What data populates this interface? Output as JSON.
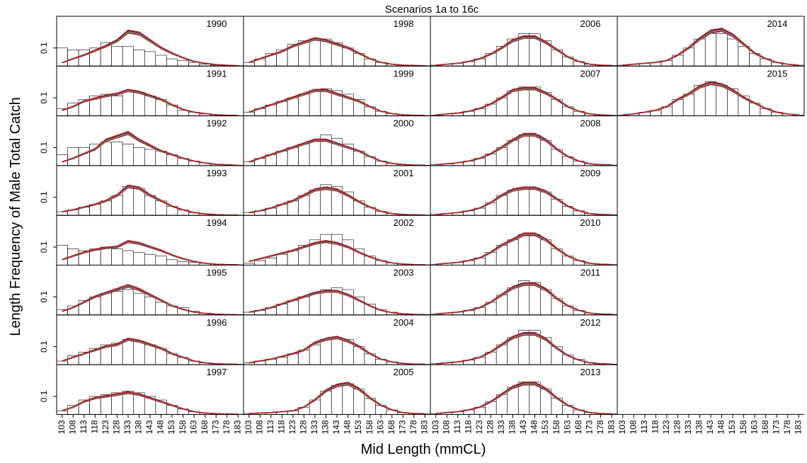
{
  "chart_data": {
    "type": "bar",
    "title": "Scenarios 1a to 16c",
    "xlabel": "Mid Length (mmCL)",
    "ylabel": "Length Frequency of Male Total Catch",
    "x_ticks": [
      "103",
      "108",
      "113",
      "118",
      "123",
      "128",
      "133",
      "138",
      "143",
      "148",
      "153",
      "158",
      "163",
      "168",
      "173",
      "178",
      "183"
    ],
    "y_tick_label": "0.1",
    "y_tick_value": 0.1,
    "ylim": [
      0,
      0.26
    ],
    "grid": false,
    "legend": "none",
    "layout": {
      "columns": 4,
      "rows": 8
    },
    "line_colors": [
      "#8a8a8a",
      "#ff0000",
      "#0000cc",
      "#e0e000",
      "#00bb00",
      "#ff00ff",
      "#000000",
      "#b22222"
    ],
    "panels": [
      {
        "year": "1990",
        "col": 0,
        "row": 0,
        "obs": [
          0.1,
          0.09,
          0.09,
          0.1,
          0.13,
          0.11,
          0.11,
          0.09,
          0.08,
          0.06,
          0.04,
          0.03,
          0.02,
          0.01,
          0.005,
          0.003,
          0.002
        ],
        "pred": [
          0.018,
          0.04,
          0.06,
          0.085,
          0.11,
          0.14,
          0.19,
          0.18,
          0.14,
          0.1,
          0.07,
          0.045,
          0.025,
          0.015,
          0.008,
          0.004,
          0.002
        ]
      },
      {
        "year": "1991",
        "col": 0,
        "row": 1,
        "obs": [
          0.04,
          0.07,
          0.09,
          0.11,
          0.12,
          0.11,
          0.14,
          0.13,
          0.11,
          0.09,
          0.06,
          0.03,
          0.02,
          0.01,
          0.005,
          0.002,
          0.001
        ],
        "pred": [
          0.03,
          0.05,
          0.08,
          0.095,
          0.11,
          0.12,
          0.14,
          0.13,
          0.11,
          0.09,
          0.06,
          0.035,
          0.02,
          0.012,
          0.006,
          0.003,
          0.002
        ]
      },
      {
        "year": "1992",
        "col": 0,
        "row": 2,
        "obs": [
          0.06,
          0.1,
          0.1,
          0.12,
          0.13,
          0.13,
          0.12,
          0.1,
          0.09,
          0.08,
          0.06,
          0.04,
          0.025,
          0.015,
          0.008,
          0.004,
          0.002
        ],
        "pred": [
          0.02,
          0.04,
          0.065,
          0.09,
          0.14,
          0.16,
          0.18,
          0.14,
          0.11,
          0.08,
          0.06,
          0.04,
          0.025,
          0.014,
          0.007,
          0.004,
          0.002
        ]
      },
      {
        "year": "1993",
        "col": 0,
        "row": 3,
        "obs": [
          0.02,
          0.03,
          0.045,
          0.06,
          0.08,
          0.11,
          0.16,
          0.15,
          0.11,
          0.08,
          0.05,
          0.03,
          0.015,
          0.008,
          0.004,
          0.002,
          0.001
        ],
        "pred": [
          0.02,
          0.03,
          0.045,
          0.06,
          0.08,
          0.11,
          0.16,
          0.15,
          0.11,
          0.08,
          0.05,
          0.03,
          0.015,
          0.008,
          0.004,
          0.002,
          0.001
        ]
      },
      {
        "year": "1994",
        "col": 0,
        "row": 4,
        "obs": [
          0.11,
          0.09,
          0.08,
          0.09,
          0.1,
          0.09,
          0.08,
          0.07,
          0.06,
          0.05,
          0.03,
          0.02,
          0.015,
          0.01,
          0.005,
          0.003,
          0.002
        ],
        "pred": [
          0.03,
          0.05,
          0.07,
          0.085,
          0.095,
          0.1,
          0.13,
          0.12,
          0.1,
          0.08,
          0.055,
          0.035,
          0.02,
          0.01,
          0.005,
          0.003,
          0.002
        ]
      },
      {
        "year": "1995",
        "col": 0,
        "row": 5,
        "obs": [
          0.03,
          0.05,
          0.08,
          0.1,
          0.12,
          0.13,
          0.14,
          0.12,
          0.1,
          0.07,
          0.05,
          0.04,
          0.02,
          0.01,
          0.005,
          0.003,
          0.002
        ],
        "pred": [
          0.02,
          0.04,
          0.07,
          0.1,
          0.12,
          0.14,
          0.16,
          0.14,
          0.11,
          0.08,
          0.05,
          0.03,
          0.015,
          0.008,
          0.004,
          0.002,
          0.001
        ]
      },
      {
        "year": "1996",
        "col": 0,
        "row": 6,
        "obs": [
          0.02,
          0.05,
          0.07,
          0.09,
          0.11,
          0.12,
          0.14,
          0.13,
          0.11,
          0.09,
          0.06,
          0.04,
          0.02,
          0.01,
          0.005,
          0.003,
          0.002
        ],
        "pred": [
          0.02,
          0.04,
          0.06,
          0.08,
          0.1,
          0.11,
          0.14,
          0.13,
          0.11,
          0.09,
          0.06,
          0.04,
          0.02,
          0.01,
          0.005,
          0.003,
          0.002
        ]
      },
      {
        "year": "1997",
        "col": 0,
        "row": 7,
        "obs": [
          0.02,
          0.05,
          0.08,
          0.1,
          0.11,
          0.12,
          0.13,
          0.12,
          0.1,
          0.08,
          0.05,
          0.03,
          0.015,
          0.008,
          0.004,
          0.002,
          0.001
        ],
        "pred": [
          0.02,
          0.04,
          0.07,
          0.09,
          0.1,
          0.11,
          0.12,
          0.11,
          0.09,
          0.07,
          0.05,
          0.03,
          0.015,
          0.008,
          0.004,
          0.002,
          0.001
        ]
      },
      {
        "year": "1998",
        "col": 1,
        "row": 0,
        "obs": [
          0.02,
          0.04,
          0.07,
          0.09,
          0.12,
          0.14,
          0.15,
          0.15,
          0.13,
          0.1,
          0.07,
          0.04,
          0.02,
          0.01,
          0.005,
          0.003,
          0.002
        ],
        "pred": [
          0.02,
          0.04,
          0.06,
          0.08,
          0.11,
          0.13,
          0.15,
          0.14,
          0.12,
          0.1,
          0.07,
          0.04,
          0.02,
          0.01,
          0.005,
          0.003,
          0.002
        ]
      },
      {
        "year": "1999",
        "col": 1,
        "row": 1,
        "obs": [
          0.02,
          0.04,
          0.06,
          0.08,
          0.1,
          0.12,
          0.14,
          0.15,
          0.14,
          0.12,
          0.09,
          0.05,
          0.025,
          0.012,
          0.006,
          0.003,
          0.002
        ],
        "pred": [
          0.02,
          0.04,
          0.06,
          0.08,
          0.1,
          0.12,
          0.14,
          0.14,
          0.12,
          0.1,
          0.08,
          0.05,
          0.025,
          0.012,
          0.006,
          0.003,
          0.002
        ]
      },
      {
        "year": "2000",
        "col": 1,
        "row": 2,
        "obs": [
          0.02,
          0.04,
          0.06,
          0.08,
          0.1,
          0.12,
          0.14,
          0.17,
          0.15,
          0.12,
          0.08,
          0.05,
          0.025,
          0.012,
          0.006,
          0.003,
          0.002
        ],
        "pred": [
          0.02,
          0.04,
          0.06,
          0.08,
          0.1,
          0.12,
          0.14,
          0.14,
          0.12,
          0.1,
          0.08,
          0.05,
          0.025,
          0.012,
          0.006,
          0.003,
          0.002
        ]
      },
      {
        "year": "2001",
        "col": 1,
        "row": 3,
        "obs": [
          0.015,
          0.025,
          0.04,
          0.06,
          0.08,
          0.11,
          0.14,
          0.17,
          0.16,
          0.13,
          0.08,
          0.045,
          0.022,
          0.01,
          0.005,
          0.003,
          0.002
        ],
        "pred": [
          0.015,
          0.025,
          0.04,
          0.06,
          0.08,
          0.11,
          0.14,
          0.15,
          0.14,
          0.11,
          0.075,
          0.045,
          0.022,
          0.01,
          0.005,
          0.003,
          0.002
        ]
      },
      {
        "year": "2002",
        "col": 1,
        "row": 4,
        "obs": [
          0.01,
          0.025,
          0.04,
          0.06,
          0.08,
          0.11,
          0.14,
          0.17,
          0.17,
          0.14,
          0.09,
          0.05,
          0.025,
          0.012,
          0.006,
          0.003,
          0.002
        ],
        "pred": [
          0.02,
          0.035,
          0.05,
          0.065,
          0.08,
          0.1,
          0.12,
          0.13,
          0.12,
          0.1,
          0.07,
          0.045,
          0.025,
          0.012,
          0.006,
          0.003,
          0.002
        ]
      },
      {
        "year": "2003",
        "col": 1,
        "row": 5,
        "obs": [
          0.015,
          0.025,
          0.04,
          0.06,
          0.08,
          0.1,
          0.12,
          0.14,
          0.15,
          0.14,
          0.1,
          0.06,
          0.03,
          0.015,
          0.007,
          0.003,
          0.002
        ],
        "pred": [
          0.015,
          0.025,
          0.04,
          0.06,
          0.08,
          0.1,
          0.12,
          0.13,
          0.13,
          0.11,
          0.08,
          0.05,
          0.025,
          0.012,
          0.006,
          0.003,
          0.002
        ]
      },
      {
        "year": "2004",
        "col": 1,
        "row": 6,
        "obs": [
          0.01,
          0.02,
          0.03,
          0.04,
          0.06,
          0.08,
          0.11,
          0.14,
          0.15,
          0.14,
          0.1,
          0.06,
          0.03,
          0.015,
          0.007,
          0.003,
          0.002
        ],
        "pred": [
          0.01,
          0.02,
          0.03,
          0.045,
          0.06,
          0.08,
          0.12,
          0.14,
          0.15,
          0.13,
          0.1,
          0.06,
          0.03,
          0.015,
          0.007,
          0.003,
          0.002
        ]
      },
      {
        "year": "2005",
        "col": 1,
        "row": 7,
        "obs": [
          0.005,
          0.008,
          0.01,
          0.015,
          0.02,
          0.04,
          0.08,
          0.13,
          0.16,
          0.17,
          0.14,
          0.09,
          0.05,
          0.025,
          0.01,
          0.005,
          0.003
        ],
        "pred": [
          0.005,
          0.008,
          0.01,
          0.015,
          0.02,
          0.04,
          0.08,
          0.13,
          0.16,
          0.17,
          0.14,
          0.09,
          0.05,
          0.025,
          0.01,
          0.005,
          0.003
        ]
      },
      {
        "year": "2006",
        "col": 2,
        "row": 0,
        "obs": [
          0.005,
          0.01,
          0.015,
          0.025,
          0.04,
          0.07,
          0.11,
          0.15,
          0.18,
          0.18,
          0.14,
          0.09,
          0.05,
          0.025,
          0.01,
          0.005,
          0.003
        ],
        "pred": [
          0.005,
          0.01,
          0.015,
          0.025,
          0.04,
          0.065,
          0.1,
          0.14,
          0.16,
          0.16,
          0.13,
          0.09,
          0.05,
          0.025,
          0.01,
          0.005,
          0.003
        ]
      },
      {
        "year": "2007",
        "col": 2,
        "row": 1,
        "obs": [
          0.005,
          0.01,
          0.015,
          0.025,
          0.04,
          0.065,
          0.1,
          0.14,
          0.16,
          0.16,
          0.13,
          0.09,
          0.05,
          0.025,
          0.01,
          0.005,
          0.003
        ],
        "pred": [
          0.005,
          0.01,
          0.015,
          0.025,
          0.04,
          0.065,
          0.1,
          0.14,
          0.15,
          0.15,
          0.125,
          0.09,
          0.05,
          0.025,
          0.01,
          0.005,
          0.003
        ]
      },
      {
        "year": "2008",
        "col": 2,
        "row": 2,
        "obs": [
          0.005,
          0.01,
          0.015,
          0.025,
          0.04,
          0.065,
          0.1,
          0.14,
          0.17,
          0.17,
          0.14,
          0.09,
          0.05,
          0.025,
          0.01,
          0.005,
          0.003
        ],
        "pred": [
          0.005,
          0.01,
          0.015,
          0.025,
          0.04,
          0.065,
          0.1,
          0.14,
          0.17,
          0.17,
          0.14,
          0.09,
          0.05,
          0.025,
          0.01,
          0.005,
          0.003
        ]
      },
      {
        "year": "2009",
        "col": 2,
        "row": 3,
        "obs": [
          0.005,
          0.01,
          0.015,
          0.025,
          0.04,
          0.07,
          0.11,
          0.14,
          0.15,
          0.15,
          0.13,
          0.09,
          0.05,
          0.025,
          0.01,
          0.005,
          0.003
        ],
        "pred": [
          0.005,
          0.01,
          0.015,
          0.025,
          0.04,
          0.07,
          0.11,
          0.14,
          0.15,
          0.15,
          0.13,
          0.09,
          0.05,
          0.025,
          0.01,
          0.005,
          0.003
        ]
      },
      {
        "year": "2010",
        "col": 2,
        "row": 4,
        "obs": [
          0.005,
          0.01,
          0.015,
          0.025,
          0.04,
          0.07,
          0.11,
          0.14,
          0.17,
          0.17,
          0.14,
          0.09,
          0.05,
          0.025,
          0.01,
          0.005,
          0.003
        ],
        "pred": [
          0.005,
          0.01,
          0.015,
          0.025,
          0.04,
          0.07,
          0.11,
          0.14,
          0.17,
          0.17,
          0.14,
          0.09,
          0.05,
          0.025,
          0.01,
          0.005,
          0.003
        ]
      },
      {
        "year": "2011",
        "col": 2,
        "row": 5,
        "obs": [
          0.005,
          0.01,
          0.015,
          0.025,
          0.04,
          0.07,
          0.11,
          0.15,
          0.19,
          0.18,
          0.14,
          0.09,
          0.05,
          0.025,
          0.01,
          0.005,
          0.003
        ],
        "pred": [
          0.005,
          0.01,
          0.015,
          0.025,
          0.04,
          0.07,
          0.11,
          0.15,
          0.17,
          0.17,
          0.14,
          0.09,
          0.05,
          0.025,
          0.01,
          0.005,
          0.003
        ]
      },
      {
        "year": "2012",
        "col": 2,
        "row": 6,
        "obs": [
          0.005,
          0.01,
          0.015,
          0.025,
          0.04,
          0.07,
          0.11,
          0.15,
          0.19,
          0.19,
          0.15,
          0.1,
          0.055,
          0.03,
          0.012,
          0.006,
          0.003
        ],
        "pred": [
          0.005,
          0.01,
          0.015,
          0.025,
          0.04,
          0.07,
          0.11,
          0.15,
          0.17,
          0.17,
          0.14,
          0.09,
          0.05,
          0.025,
          0.01,
          0.005,
          0.003
        ]
      },
      {
        "year": "2013",
        "col": 2,
        "row": 7,
        "obs": [
          0.005,
          0.01,
          0.015,
          0.025,
          0.04,
          0.07,
          0.11,
          0.15,
          0.18,
          0.18,
          0.14,
          0.09,
          0.05,
          0.025,
          0.01,
          0.005,
          0.003
        ],
        "pred": [
          0.005,
          0.01,
          0.015,
          0.025,
          0.04,
          0.07,
          0.11,
          0.15,
          0.17,
          0.17,
          0.14,
          0.09,
          0.05,
          0.025,
          0.01,
          0.005,
          0.003
        ]
      },
      {
        "year": "2014",
        "col": 3,
        "row": 0,
        "obs": [
          0.005,
          0.01,
          0.015,
          0.02,
          0.03,
          0.06,
          0.1,
          0.15,
          0.18,
          0.18,
          0.15,
          0.11,
          0.07,
          0.04,
          0.02,
          0.01,
          0.005
        ],
        "pred": [
          0.005,
          0.01,
          0.015,
          0.02,
          0.03,
          0.06,
          0.1,
          0.15,
          0.19,
          0.2,
          0.17,
          0.12,
          0.07,
          0.04,
          0.02,
          0.01,
          0.005
        ]
      },
      {
        "year": "2015",
        "col": 3,
        "row": 1,
        "obs": [
          0.005,
          0.01,
          0.02,
          0.03,
          0.05,
          0.09,
          0.12,
          0.17,
          0.19,
          0.17,
          0.15,
          0.11,
          0.07,
          0.04,
          0.02,
          0.01,
          0.005
        ],
        "pred": [
          0.005,
          0.01,
          0.02,
          0.03,
          0.05,
          0.09,
          0.12,
          0.16,
          0.18,
          0.17,
          0.14,
          0.1,
          0.07,
          0.04,
          0.02,
          0.01,
          0.005
        ]
      }
    ]
  }
}
